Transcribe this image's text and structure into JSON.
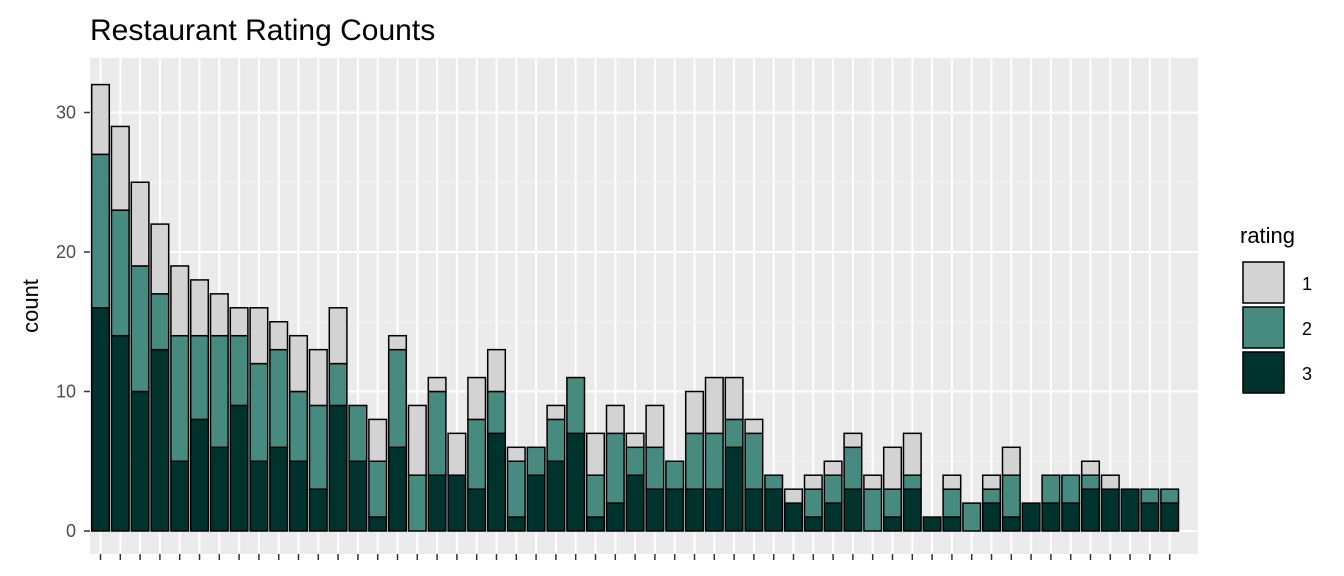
{
  "chart_data": {
    "type": "bar",
    "stacked": true,
    "title": "Restaurant Rating Counts",
    "xlabel": "",
    "ylabel": "count",
    "ylim": [
      0,
      32.5
    ],
    "yticks": [
      0,
      10,
      20,
      30
    ],
    "grid": true,
    "legend": {
      "title": "rating",
      "position": "right"
    },
    "categories_count": 55,
    "series": [
      {
        "name": "1",
        "color": "#d3d3d3",
        "values": [
          5,
          6,
          6,
          5,
          5,
          4,
          3,
          2,
          4,
          2,
          4,
          4,
          4,
          0,
          3,
          1,
          5,
          1,
          3,
          3,
          3,
          1,
          0,
          1,
          0,
          3,
          2,
          1,
          3,
          0,
          3,
          4,
          3,
          1,
          0,
          1,
          1,
          1,
          1,
          1,
          3,
          3,
          0,
          1,
          0,
          1,
          2,
          0,
          0,
          0,
          1,
          1,
          0,
          0,
          0
        ]
      },
      {
        "name": "2",
        "color": "#468a80",
        "values": [
          11,
          9,
          9,
          4,
          9,
          6,
          8,
          5,
          7,
          7,
          5,
          6,
          3,
          4,
          4,
          7,
          4,
          6,
          0,
          5,
          3,
          4,
          2,
          3,
          4,
          3,
          5,
          2,
          3,
          2,
          4,
          4,
          2,
          4,
          1,
          0,
          2,
          2,
          3,
          3,
          2,
          1,
          0,
          2,
          2,
          1,
          3,
          0,
          2,
          2,
          1,
          0,
          0,
          1,
          1
        ]
      },
      {
        "name": "3",
        "color": "#00332e",
        "values": [
          16,
          14,
          10,
          13,
          5,
          8,
          6,
          9,
          5,
          6,
          5,
          3,
          9,
          5,
          1,
          6,
          0,
          4,
          4,
          3,
          7,
          1,
          4,
          5,
          7,
          1,
          2,
          4,
          3,
          3,
          3,
          3,
          6,
          3,
          3,
          2,
          1,
          2,
          3,
          0,
          1,
          3,
          1,
          1,
          0,
          2,
          1,
          2,
          2,
          2,
          3,
          3,
          3,
          2,
          2
        ]
      }
    ]
  }
}
